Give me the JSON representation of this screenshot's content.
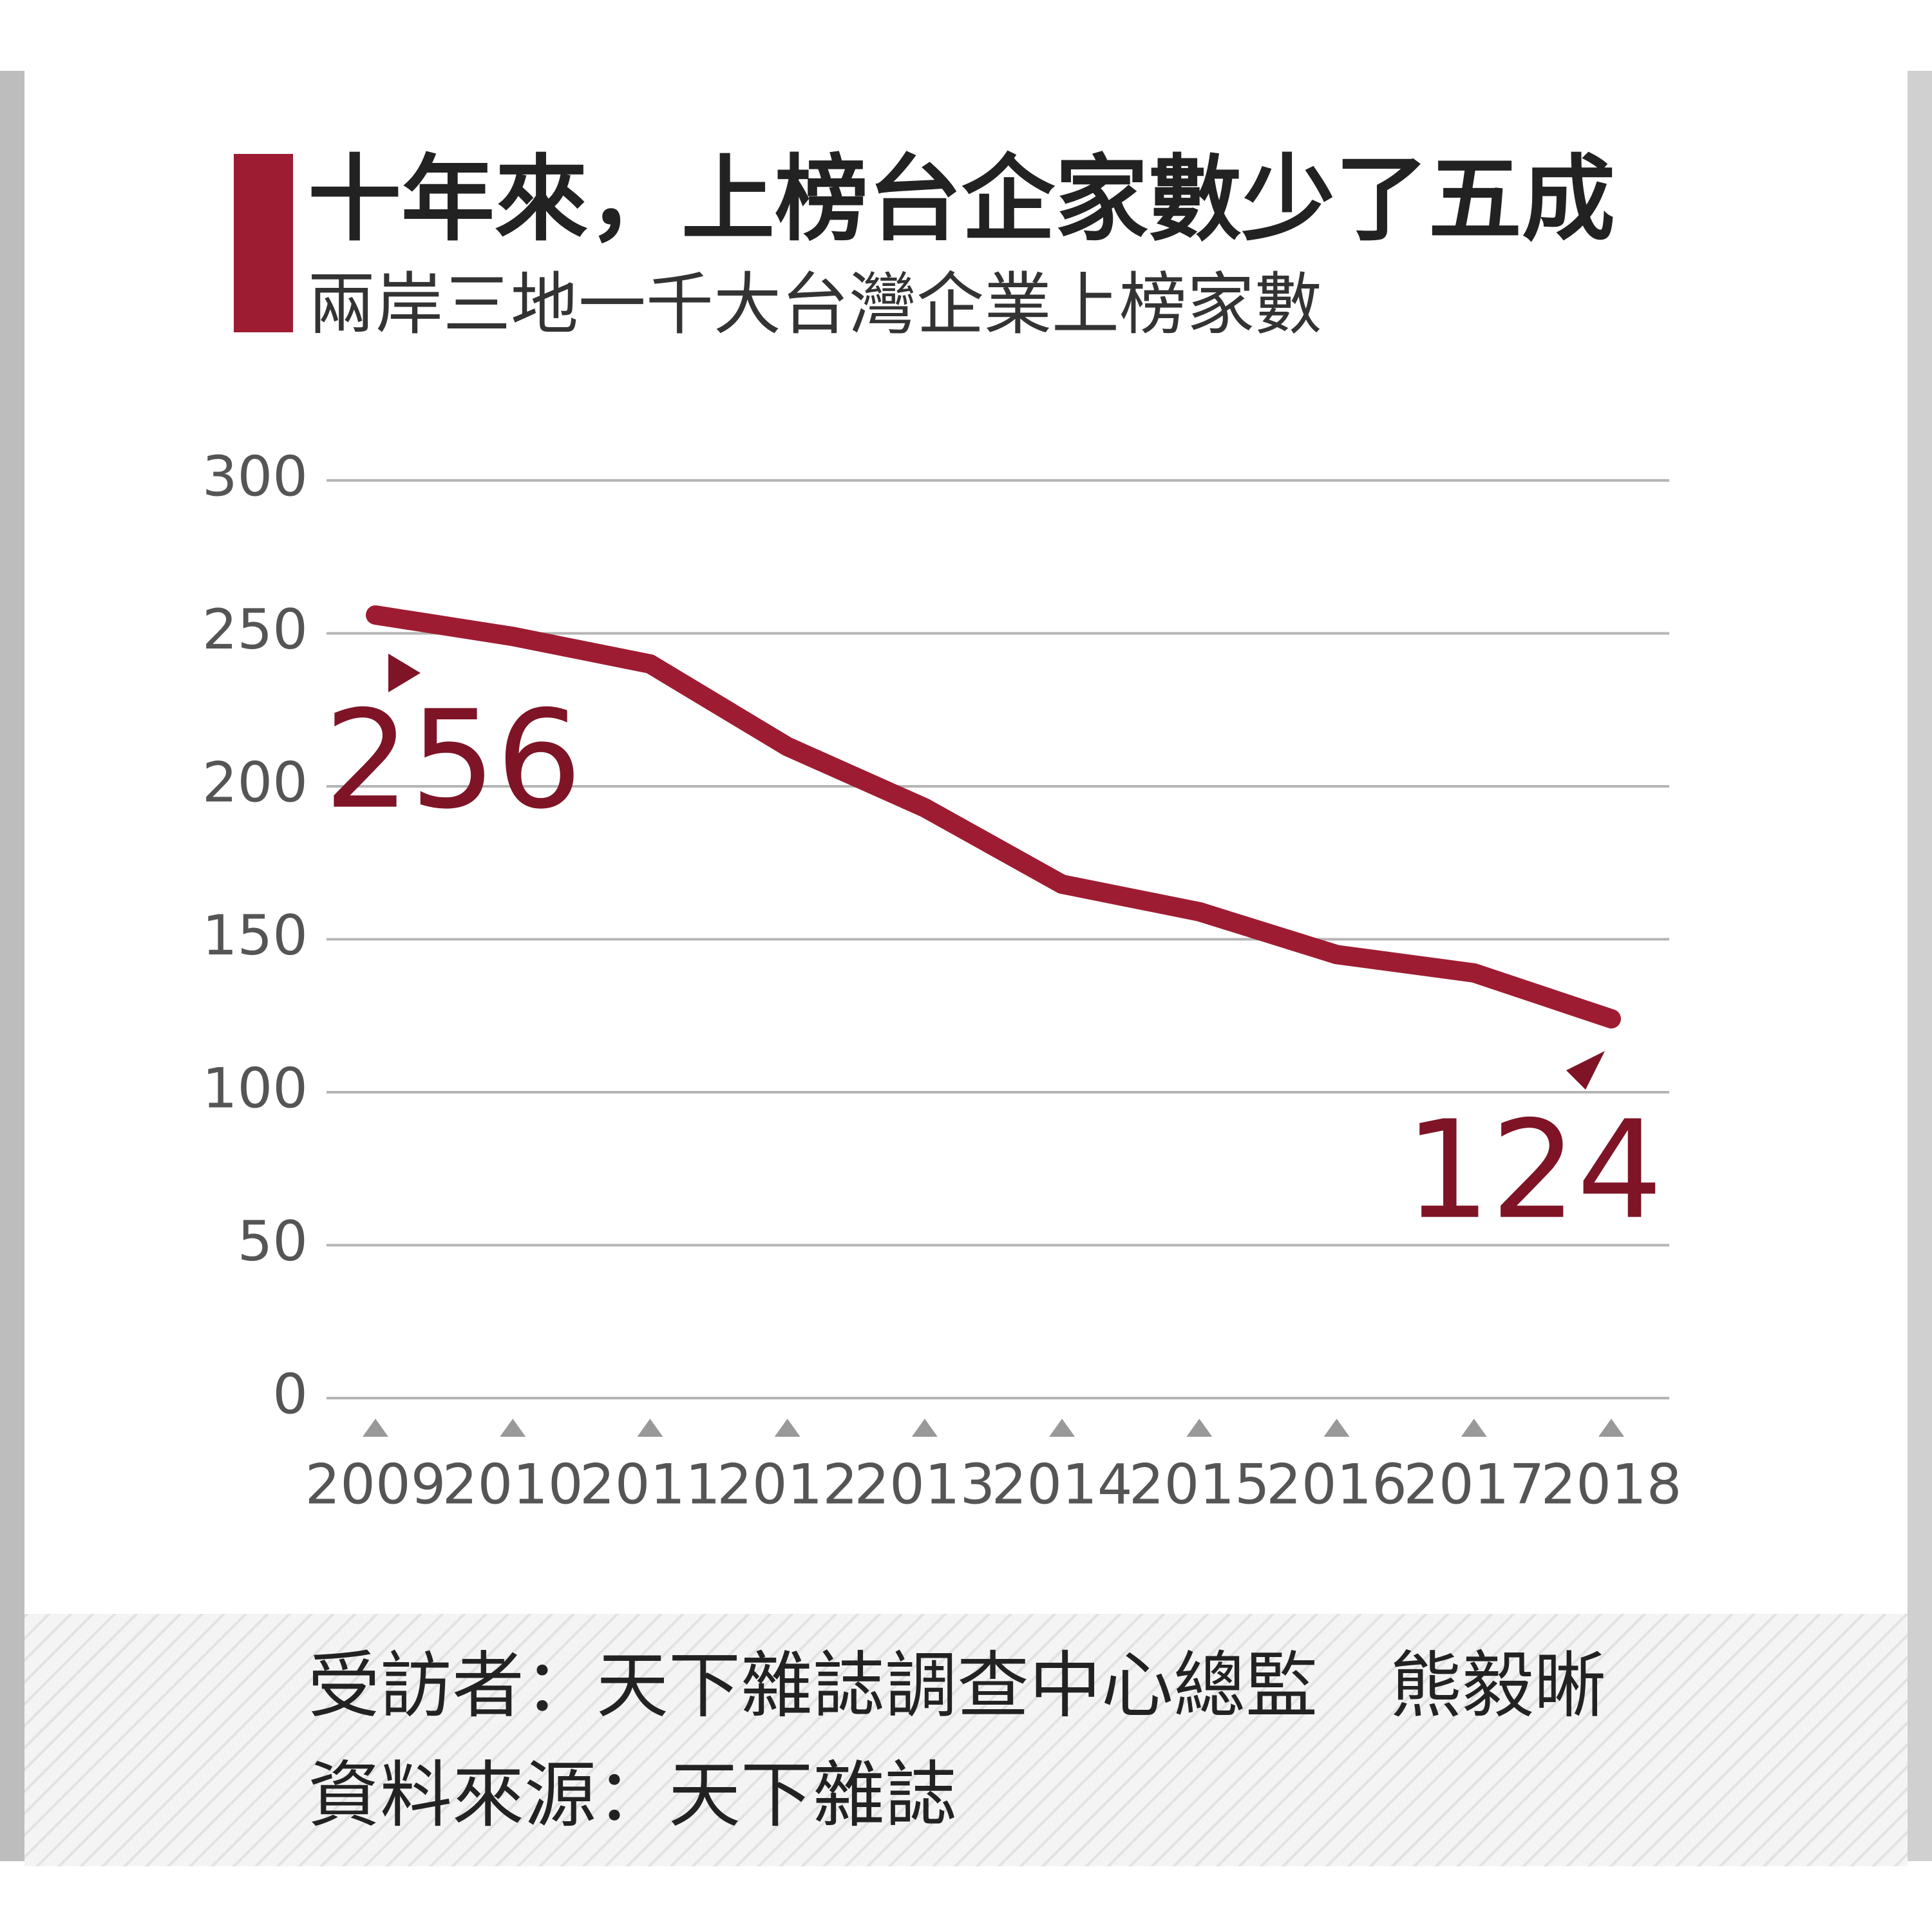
{
  "chart_data": {
    "type": "line",
    "title": "十年來，上榜台企家數少了五成",
    "subtitle": "兩岸三地一千大台灣企業上榜家數",
    "categories": [
      "2009",
      "2010",
      "2011",
      "2012",
      "2013",
      "2014",
      "2015",
      "2016",
      "2017",
      "2018"
    ],
    "series": [
      {
        "name": "上榜家數",
        "color": "#9e1c32",
        "values": [
          256,
          249,
          240,
          213,
          193,
          168,
          159,
          145,
          139,
          124
        ]
      }
    ],
    "ylim": [
      0,
      300
    ],
    "yticks": [
      0,
      50,
      100,
      150,
      200,
      250,
      300
    ],
    "grid": true,
    "notes": [
      "受訪者：天下雜誌調查中心總監　熊毅晰",
      "資料來源：天下雜誌"
    ]
  }
}
